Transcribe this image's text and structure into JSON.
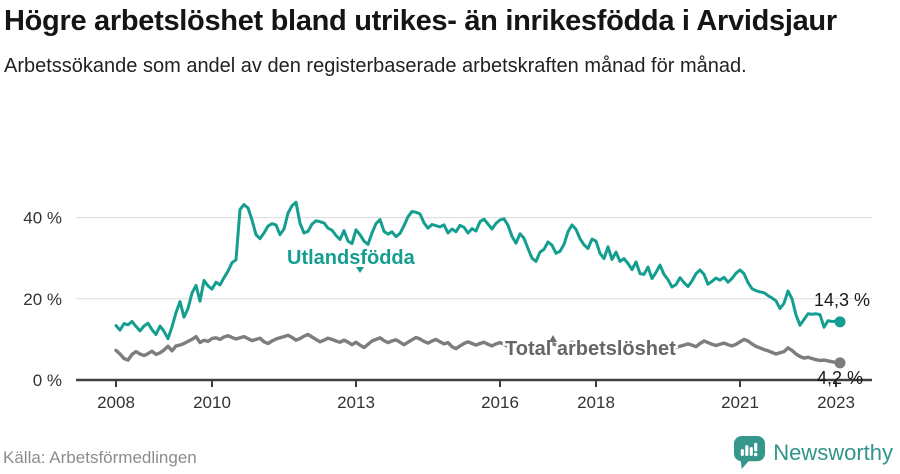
{
  "footer": {
    "brand": "Newsworthy"
  },
  "colors": {
    "series_foreign": "#149e8f",
    "series_total": "#7d7d7d",
    "brand_teal": "#35968c",
    "gridline": "#dcdcdc",
    "axis": "#404040"
  },
  "chart_data": {
    "type": "line",
    "title": "Högre arbetslöshet bland utrikes- än inrikesfödda i Arvidsjaur",
    "subtitle": "Arbetssökande som andel av den registerbaserade arbetskraften månad för månad.",
    "source": "Källa: Arbetsförmedlingen",
    "unit": "%",
    "x_unit": "month",
    "x_start": "2008-01",
    "x_end": "2023-02",
    "grid": "horizontal-only",
    "legend": "inline-labels",
    "ylim": [
      0,
      47
    ],
    "xticks": [
      {
        "value": 2008,
        "label": "2008"
      },
      {
        "value": 2010,
        "label": "2010"
      },
      {
        "value": 2013,
        "label": "2013"
      },
      {
        "value": 2016,
        "label": "2016"
      },
      {
        "value": 2018,
        "label": "2018"
      },
      {
        "value": 2021,
        "label": "2021"
      },
      {
        "value": 2023,
        "label": "2023"
      }
    ],
    "yticks": [
      {
        "value": 0,
        "label": "0 %"
      },
      {
        "value": 20,
        "label": "20 %"
      },
      {
        "value": 40,
        "label": "40 %"
      }
    ],
    "series": [
      {
        "name": "Utlandsfödda",
        "color": "#149e8f",
        "end_label": "14,3 %",
        "end_value": 14.3,
        "values": [
          13.4,
          12.3,
          13.9,
          13.6,
          14.4,
          13.2,
          12.1,
          13.3,
          14.0,
          12.4,
          11.2,
          13.3,
          12.0,
          10.2,
          13.1,
          16.6,
          19.3,
          15.5,
          17.6,
          21.4,
          23.3,
          19.4,
          24.5,
          23.2,
          22.4,
          24.1,
          23.4,
          25.2,
          26.8,
          28.9,
          29.6,
          42.0,
          43.2,
          42.4,
          39.4,
          35.8,
          34.8,
          36.2,
          37.9,
          38.5,
          38.2,
          35.8,
          37.2,
          41.1,
          42.9,
          43.8,
          38.6,
          36.2,
          36.6,
          38.4,
          39.2,
          39.0,
          38.7,
          37.4,
          36.9,
          35.6,
          34.6,
          36.8,
          34.2,
          33.6,
          37.0,
          35.8,
          34.2,
          33.4,
          36.2,
          38.5,
          39.5,
          36.6,
          35.9,
          36.5,
          35.3,
          36.1,
          38.0,
          40.2,
          41.5,
          41.3,
          40.9,
          38.7,
          37.4,
          38.3,
          38.0,
          37.7,
          38.2,
          36.2,
          37.2,
          36.5,
          38.1,
          37.6,
          36.2,
          37.3,
          36.7,
          39.0,
          39.6,
          38.4,
          37.2,
          38.6,
          39.4,
          39.7,
          38.1,
          35.4,
          33.7,
          36.0,
          34.9,
          32.4,
          30.0,
          29.2,
          31.5,
          32.2,
          34.0,
          33.2,
          31.2,
          31.7,
          33.4,
          36.5,
          38.2,
          37.1,
          34.8,
          33.3,
          32.4,
          34.7,
          34.2,
          31.2,
          29.9,
          32.8,
          29.7,
          31.5,
          29.2,
          29.9,
          28.7,
          27.2,
          29.1,
          26.2,
          26.0,
          27.8,
          25.0,
          26.5,
          28.3,
          26.0,
          24.7,
          22.9,
          23.5,
          25.2,
          24.0,
          23.0,
          24.4,
          26.2,
          27.1,
          26.0,
          23.6,
          24.3,
          25.1,
          24.6,
          25.3,
          24.1,
          25.0,
          26.3,
          27.1,
          26.2,
          24.0,
          22.5,
          22.0,
          21.7,
          21.5,
          20.8,
          20.2,
          19.5,
          17.6,
          18.9,
          21.9,
          20.0,
          16.0,
          13.5,
          14.9,
          16.3,
          16.2,
          16.3,
          16.1,
          13.0,
          14.6,
          14.4,
          14.5,
          14.3
        ]
      },
      {
        "name": "Total arbetslöshet",
        "color": "#7d7d7d",
        "end_label": "4,2 %",
        "end_value": 4.2,
        "values": [
          7.3,
          6.4,
          5.3,
          4.9,
          6.3,
          7.0,
          6.4,
          6.0,
          6.5,
          7.1,
          6.3,
          6.7,
          7.4,
          8.3,
          7.2,
          8.4,
          8.6,
          9.0,
          9.5,
          10.0,
          10.7,
          9.2,
          9.8,
          9.5,
          10.2,
          10.4,
          10.0,
          10.6,
          10.9,
          10.5,
          10.1,
          10.4,
          10.7,
          10.2,
          9.7,
          10.0,
          10.3,
          9.4,
          9.0,
          9.6,
          10.1,
          10.4,
          10.7,
          11.0,
          10.5,
          9.8,
          10.2,
          10.8,
          11.2,
          10.6,
          10.0,
          9.4,
          9.8,
          10.3,
          10.0,
          9.6,
          9.3,
          9.8,
          9.3,
          8.7,
          9.3,
          8.6,
          8.0,
          8.8,
          9.6,
          10.0,
          10.4,
          9.7,
          9.2,
          9.6,
          9.9,
          9.3,
          8.7,
          9.3,
          9.9,
          10.5,
          10.1,
          9.5,
          9.1,
          9.6,
          10.0,
          9.4,
          8.9,
          9.2,
          8.2,
          7.7,
          8.4,
          9.0,
          9.4,
          9.0,
          8.6,
          9.0,
          9.3,
          8.8,
          8.4,
          8.9,
          9.2,
          8.8,
          8.3,
          8.7,
          9.1,
          8.8,
          8.4,
          8.0,
          8.5,
          8.9,
          8.6,
          8.2,
          8.6,
          9.0,
          8.6,
          8.1,
          8.5,
          9.0,
          9.3,
          8.9,
          8.4,
          8.0,
          8.3,
          8.7,
          9.0,
          8.5,
          8.0,
          8.4,
          8.8,
          8.5,
          8.1,
          7.8,
          8.2,
          8.6,
          8.3,
          7.9,
          8.2,
          8.6,
          8.2,
          7.8,
          8.1,
          8.5,
          8.8,
          8.4,
          8.0,
          8.3,
          8.6,
          8.9,
          8.6,
          8.2,
          9.0,
          9.6,
          9.2,
          8.8,
          8.5,
          8.8,
          9.1,
          8.7,
          8.4,
          8.8,
          9.4,
          10.0,
          9.6,
          8.9,
          8.3,
          7.9,
          7.5,
          7.2,
          6.8,
          6.4,
          6.7,
          7.0,
          7.9,
          7.3,
          6.4,
          5.8,
          5.4,
          5.6,
          5.3,
          5.0,
          4.8,
          4.9,
          4.7,
          4.5,
          4.3,
          4.2
        ]
      }
    ]
  }
}
